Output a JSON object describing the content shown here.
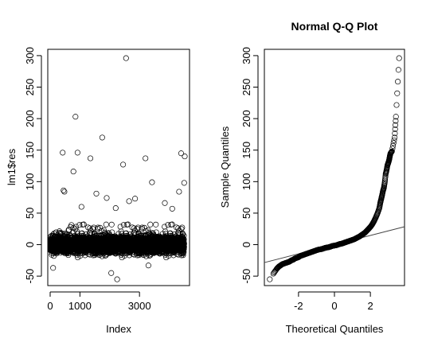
{
  "chart_data": [
    {
      "type": "scatter",
      "title": "",
      "xlabel": "Index",
      "ylabel": "lm1$res",
      "xlim": [
        -80,
        4680
      ],
      "ylim": [
        -65,
        310
      ],
      "xticks": [
        0,
        1000,
        3000
      ],
      "xtick_labels": [
        "0",
        "1000",
        "3000"
      ],
      "yticks": [
        -50,
        0,
        50,
        100,
        150,
        200,
        250,
        300
      ],
      "ytick_labels": [
        "-50",
        "0",
        "50",
        "100",
        "150",
        "200",
        "250",
        "300"
      ],
      "grid": false,
      "n_points": 4500,
      "outliers": [
        {
          "x": 2550,
          "y": 296
        },
        {
          "x": 850,
          "y": 203
        },
        {
          "x": 1750,
          "y": 170
        },
        {
          "x": 420,
          "y": 146
        },
        {
          "x": 920,
          "y": 146
        },
        {
          "x": 1350,
          "y": 137
        },
        {
          "x": 3200,
          "y": 137
        },
        {
          "x": 4400,
          "y": 145
        },
        {
          "x": 4520,
          "y": 140
        },
        {
          "x": 2450,
          "y": 127
        },
        {
          "x": 780,
          "y": 116
        },
        {
          "x": 3420,
          "y": 99
        },
        {
          "x": 4500,
          "y": 98
        },
        {
          "x": 450,
          "y": 86
        },
        {
          "x": 480,
          "y": 84
        },
        {
          "x": 1550,
          "y": 81
        },
        {
          "x": 4330,
          "y": 84
        },
        {
          "x": 1900,
          "y": 74
        },
        {
          "x": 2850,
          "y": 73
        },
        {
          "x": 2650,
          "y": 69
        },
        {
          "x": 3850,
          "y": 66
        },
        {
          "x": 1050,
          "y": 60
        },
        {
          "x": 2200,
          "y": 58
        },
        {
          "x": 4100,
          "y": 57
        },
        {
          "x": 2050,
          "y": -45
        },
        {
          "x": 2250,
          "y": -55
        },
        {
          "x": 100,
          "y": -37
        },
        {
          "x": 3300,
          "y": -33
        }
      ]
    },
    {
      "type": "scatter",
      "title": "Normal Q-Q Plot",
      "xlabel": "Theoretical Quantiles",
      "ylabel": "Sample Quantiles",
      "xlim": [
        -3.9,
        3.9
      ],
      "ylim": [
        -65,
        310
      ],
      "xticks": [
        -2,
        0,
        2
      ],
      "xtick_labels": [
        "-2",
        "0",
        "2"
      ],
      "yticks": [
        -50,
        0,
        50,
        100,
        150,
        200,
        250,
        300
      ],
      "ytick_labels": [
        "-50",
        "0",
        "50",
        "100",
        "150",
        "200",
        "250",
        "300"
      ],
      "grid": false,
      "reference_line": {
        "intercept": 0,
        "slope": 7.3
      },
      "points": [
        [
          -3.6,
          -55
        ],
        [
          -3.4,
          -46
        ],
        [
          -3.2,
          -38
        ],
        [
          -3.1,
          -35
        ],
        [
          -3.0,
          -33
        ],
        [
          -2.9,
          -31
        ],
        [
          -2.8,
          -30
        ],
        [
          -2.7,
          -29
        ],
        [
          -2.6,
          -28
        ],
        [
          -2.5,
          -27
        ],
        [
          -2.4,
          -25
        ],
        [
          -2.3,
          -24
        ],
        [
          -2.2,
          -22
        ],
        [
          -2.1,
          -21
        ],
        [
          -2.0,
          -20
        ],
        [
          -1.9,
          -18
        ],
        [
          -1.8,
          -17
        ],
        [
          -1.7,
          -16
        ],
        [
          -1.6,
          -15
        ],
        [
          -1.5,
          -14
        ],
        [
          -1.4,
          -13
        ],
        [
          -1.3,
          -12
        ],
        [
          -1.2,
          -11
        ],
        [
          -1.1,
          -10
        ],
        [
          -1.0,
          -9
        ],
        [
          -0.9,
          -8
        ],
        [
          -0.8,
          -7.5
        ],
        [
          -0.7,
          -7
        ],
        [
          -0.6,
          -6
        ],
        [
          -0.5,
          -5
        ],
        [
          -0.4,
          -4.5
        ],
        [
          -0.3,
          -4
        ],
        [
          -0.2,
          -3
        ],
        [
          -0.1,
          -2
        ],
        [
          0.0,
          -1.5
        ],
        [
          0.1,
          -1
        ],
        [
          0.2,
          0
        ],
        [
          0.3,
          1
        ],
        [
          0.4,
          1.5
        ],
        [
          0.5,
          2.5
        ],
        [
          0.6,
          3.5
        ],
        [
          0.7,
          4.5
        ],
        [
          0.8,
          5.5
        ],
        [
          0.9,
          6.5
        ],
        [
          1.0,
          7.5
        ],
        [
          1.1,
          8.5
        ],
        [
          1.2,
          10
        ],
        [
          1.3,
          11.5
        ],
        [
          1.4,
          13
        ],
        [
          1.5,
          15
        ],
        [
          1.6,
          17
        ],
        [
          1.7,
          19
        ],
        [
          1.8,
          22
        ],
        [
          1.9,
          25
        ],
        [
          2.0,
          28
        ],
        [
          2.1,
          32
        ],
        [
          2.2,
          37
        ],
        [
          2.3,
          43
        ],
        [
          2.4,
          50
        ],
        [
          2.5,
          58
        ],
        [
          2.55,
          66
        ],
        [
          2.6,
          72
        ],
        [
          2.65,
          78
        ],
        [
          2.7,
          85
        ],
        [
          2.75,
          90
        ],
        [
          2.8,
          99
        ],
        [
          2.85,
          112
        ],
        [
          2.9,
          118
        ],
        [
          2.95,
          126
        ],
        [
          3.0,
          130
        ],
        [
          3.05,
          135
        ],
        [
          3.08,
          140
        ],
        [
          3.12,
          145
        ],
        [
          3.2,
          148
        ],
        [
          3.35,
          170
        ],
        [
          3.42,
          203
        ],
        [
          3.6,
          296
        ]
      ]
    }
  ]
}
